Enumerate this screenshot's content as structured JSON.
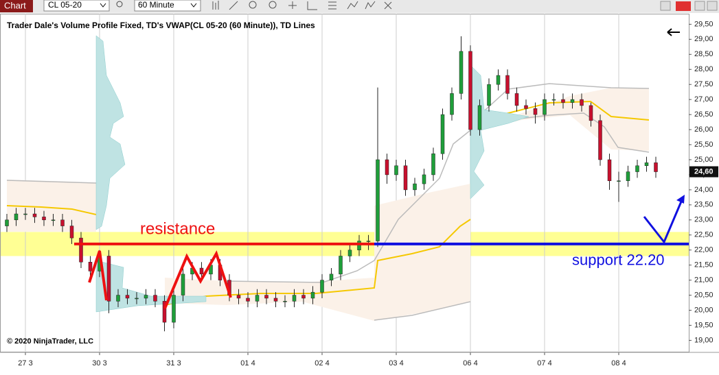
{
  "toolbar": {
    "tab": "Chart",
    "instrument": "CL 05-20",
    "interval": "60 Minute"
  },
  "chart_data": {
    "type": "candlestick",
    "title": "Trader Dale's Volume Profile Fixed, TD's VWAP(CL 05-20 (60 Minute)), TD Lines",
    "copyright": "© 2020 NinjaTrader, LLC",
    "categories": [
      null,
      null,
      "27 3",
      null,
      null,
      null,
      null,
      null,
      null,
      null,
      "30 3",
      null,
      null,
      null,
      null,
      null,
      null,
      null,
      "31 3",
      null,
      null,
      null,
      null,
      null,
      null,
      null,
      "01 4",
      null,
      null,
      null,
      null,
      null,
      null,
      null,
      "02 4",
      null,
      null,
      null,
      null,
      null,
      null,
      null,
      "03 4",
      null,
      null,
      null,
      null,
      null,
      null,
      null,
      "06 4",
      null,
      null,
      null,
      null,
      null,
      null,
      null,
      "07 4",
      null,
      null,
      null,
      null,
      null,
      null,
      null,
      "08 4",
      null,
      null,
      null,
      null
    ],
    "open": [
      22.8,
      23.0,
      23.2,
      23.2,
      23.1,
      23.0,
      23.0,
      22.8,
      22.4,
      21.6,
      21.3,
      21.8,
      20.3,
      20.5,
      20.4,
      20.4,
      20.5,
      20.3,
      19.6,
      20.5,
      21.2,
      21.4,
      21.2,
      21.5,
      21.0,
      20.5,
      20.4,
      20.3,
      20.5,
      20.4,
      20.3,
      20.3,
      20.5,
      20.4,
      20.6,
      21.0,
      21.2,
      21.8,
      22.0,
      22.3,
      22.3,
      25.0,
      24.5,
      24.8,
      24.0,
      24.2,
      24.5,
      25.2,
      26.5,
      27.2,
      28.6,
      26.0,
      26.8,
      27.5,
      27.8,
      27.2,
      26.8,
      26.7,
      26.5,
      27.0,
      27.0,
      26.9,
      27.0,
      26.8,
      26.3,
      25.0,
      24.3,
      24.3,
      24.6,
      24.8,
      24.9
    ],
    "high": [
      23.2,
      23.4,
      23.4,
      23.4,
      23.3,
      23.2,
      23.2,
      23.0,
      22.6,
      21.8,
      22.0,
      22.0,
      20.7,
      20.7,
      20.6,
      20.7,
      20.7,
      20.5,
      20.7,
      21.4,
      21.6,
      21.6,
      21.7,
      21.7,
      21.2,
      20.7,
      20.6,
      20.7,
      20.7,
      20.6,
      20.5,
      20.7,
      20.7,
      20.8,
      21.2,
      21.4,
      22.0,
      22.2,
      22.5,
      22.5,
      27.4,
      25.2,
      25.0,
      25.0,
      24.4,
      24.7,
      25.4,
      26.7,
      27.4,
      29.1,
      28.8,
      27.0,
      27.7,
      28.0,
      28.0,
      27.4,
      27.0,
      26.9,
      27.2,
      27.2,
      27.2,
      27.2,
      27.2,
      26.9,
      26.5,
      25.2,
      24.6,
      24.8,
      25.0,
      25.1,
      25.1
    ],
    "low": [
      22.6,
      22.8,
      23.0,
      22.9,
      22.8,
      22.8,
      22.6,
      22.2,
      21.4,
      21.1,
      21.1,
      19.9,
      20.1,
      20.2,
      20.2,
      20.2,
      20.1,
      19.3,
      19.4,
      20.3,
      21.0,
      21.0,
      21.0,
      20.8,
      20.3,
      20.2,
      20.1,
      20.1,
      20.2,
      20.1,
      20.1,
      20.1,
      20.2,
      20.2,
      20.4,
      20.8,
      21.0,
      21.6,
      21.8,
      22.0,
      22.1,
      24.2,
      24.3,
      23.8,
      23.8,
      24.0,
      24.3,
      25.0,
      26.3,
      27.0,
      25.8,
      25.8,
      26.6,
      27.3,
      27.0,
      26.6,
      26.5,
      26.2,
      26.3,
      26.8,
      26.7,
      26.7,
      26.6,
      26.1,
      24.8,
      24.0,
      23.6,
      24.1,
      24.4,
      24.6,
      24.4
    ],
    "close": [
      23.0,
      23.2,
      23.2,
      23.1,
      23.0,
      23.0,
      22.8,
      22.4,
      21.6,
      21.3,
      21.8,
      20.3,
      20.5,
      20.4,
      20.4,
      20.5,
      20.3,
      19.6,
      20.5,
      21.2,
      21.4,
      21.2,
      21.5,
      21.0,
      20.5,
      20.4,
      20.3,
      20.5,
      20.4,
      20.3,
      20.3,
      20.5,
      20.4,
      20.6,
      21.0,
      21.2,
      21.8,
      22.0,
      22.3,
      22.3,
      25.0,
      24.5,
      24.8,
      24.0,
      24.2,
      24.5,
      25.2,
      26.5,
      27.2,
      28.6,
      26.0,
      26.8,
      27.5,
      27.8,
      27.2,
      26.8,
      26.7,
      26.5,
      27.0,
      27.0,
      26.9,
      27.0,
      26.8,
      26.3,
      25.0,
      24.3,
      24.3,
      24.6,
      24.8,
      24.9,
      24.6
    ],
    "up_color": "#1f9e3a",
    "down_color": "#c8102e",
    "ylim": [
      18.6,
      29.85
    ],
    "yticks": [
      {
        "value": 19.0,
        "label": "19,00"
      },
      {
        "value": 19.5,
        "label": "19,50"
      },
      {
        "value": 20.0,
        "label": "20,00"
      },
      {
        "value": 20.5,
        "label": "20,50"
      },
      {
        "value": 21.0,
        "label": "21,00"
      },
      {
        "value": 21.5,
        "label": "21,50"
      },
      {
        "value": 22.0,
        "label": "22,00"
      },
      {
        "value": 22.5,
        "label": "22,50"
      },
      {
        "value": 23.0,
        "label": "23,00"
      },
      {
        "value": 23.5,
        "label": "23,50"
      },
      {
        "value": 24.0,
        "label": "24,00"
      },
      {
        "value": 24.5,
        "label": "24,50"
      },
      {
        "value": 25.0,
        "label": "25,00"
      },
      {
        "value": 25.5,
        "label": "25,50"
      },
      {
        "value": 26.0,
        "label": "26,00"
      },
      {
        "value": 26.5,
        "label": "26,50"
      },
      {
        "value": 27.0,
        "label": "27,00"
      },
      {
        "value": 27.5,
        "label": "27,50"
      },
      {
        "value": 28.0,
        "label": "28,00"
      },
      {
        "value": 28.5,
        "label": "28,50"
      },
      {
        "value": 29.0,
        "label": "29,00"
      },
      {
        "value": 29.5,
        "label": "29,50"
      }
    ],
    "last_price": {
      "value": 24.6,
      "label": "24,60"
    },
    "zone": [
      21.8,
      22.6
    ],
    "zone_color": "#ffff66",
    "level": 22.2,
    "resistance_text": "resistance",
    "resistance_color": "#ee1111",
    "support_text": "support 22.20",
    "support_color": "#1010e0"
  }
}
